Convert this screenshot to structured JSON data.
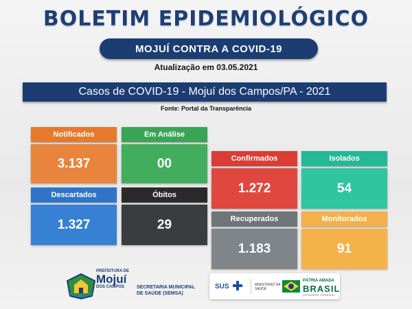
{
  "header": {
    "title": "BOLETIM EPIDEMIOLÓGICO",
    "subtitle": "MOJUÍ CONTRA A COVID-19",
    "update": "Atualização em 03.05.2021"
  },
  "banner": {
    "text": "Casos de COVID-19  -  Mojuí dos Campos/PA - 2021",
    "source": "Fonte: Portal da Transparência"
  },
  "cards": {
    "notificados": {
      "label": "Notificados",
      "value": "3.137",
      "label_color": "#e57a2e",
      "value_color": "#e8843b"
    },
    "em_analise": {
      "label": "Em Análise",
      "value": "00",
      "label_color": "#3aa455",
      "value_color": "#42ad5c"
    },
    "descartados": {
      "label": "Descartados",
      "value": "1.327",
      "label_color": "#2e74c8",
      "value_color": "#3681d3"
    },
    "obitos": {
      "label": "Óbitos",
      "value": "29",
      "label_color": "#2a2a2a",
      "value_color": "#3a3d40"
    },
    "confirmados": {
      "label": "Confirmados",
      "value": "1.272",
      "label_color": "#d93d35",
      "value_color": "#e0483f"
    },
    "isolados": {
      "label": "Isolados",
      "value": "54",
      "label_color": "#25b895",
      "value_color": "#2fc59f"
    },
    "recuperados": {
      "label": "Recuperados",
      "value": "1.183",
      "label_color": "#6f7478",
      "value_color": "#7f8589"
    },
    "monitorados": {
      "label": "Monitorados",
      "value": "91",
      "label_color": "#f3b04b",
      "value_color": "#f5b24a"
    }
  },
  "footer": {
    "pref_small": "PREFEITURA DE",
    "pref_big": "Mojuí",
    "pref_sub": "DOS CAMPOS",
    "semsa_1": "SECRETARIA MUNICIPAL",
    "semsa_2": "DE SAÚDE (SEMSA)",
    "sus": "SUS",
    "ministerio_1": "MINISTÉRIO DA",
    "ministerio_2": "SAÚDE",
    "patria": "PÁTRIA AMADA",
    "brasil": "BRASIL",
    "governo": "GOVERNO FEDERAL"
  },
  "colors": {
    "navy": "#1c3d72"
  }
}
